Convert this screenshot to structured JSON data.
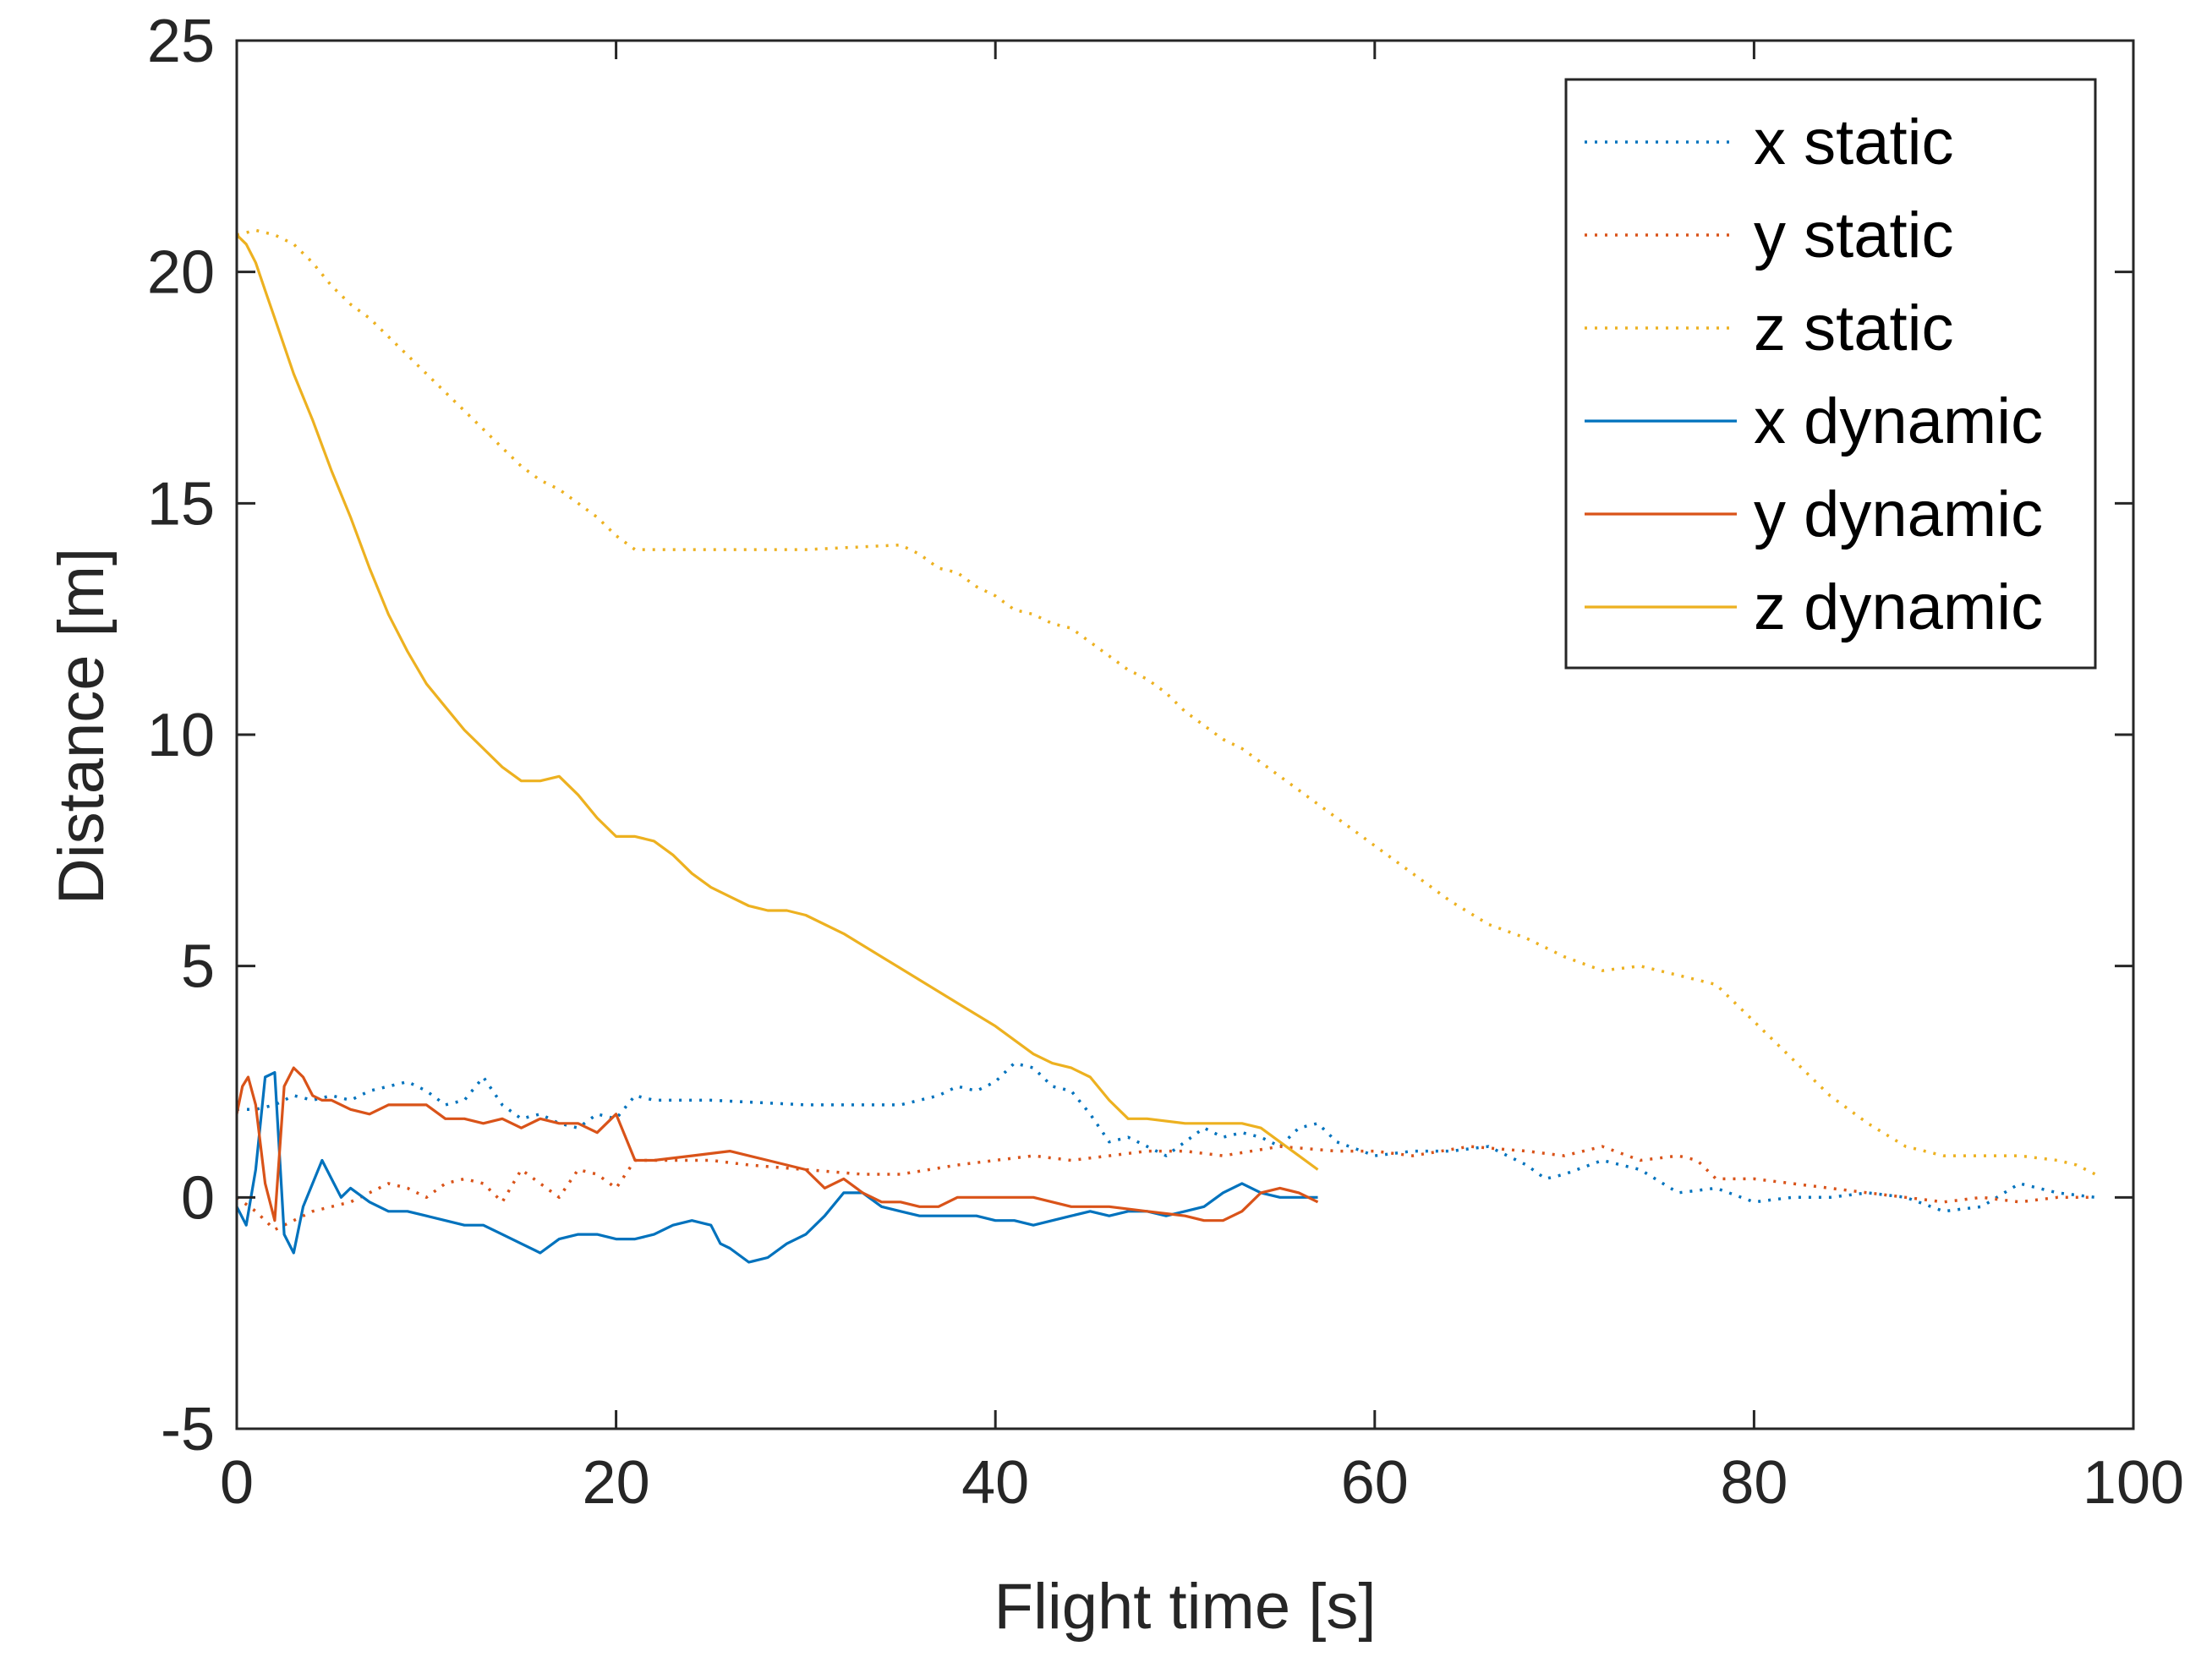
{
  "chart_data": {
    "type": "line",
    "title": "",
    "xlabel": "Flight time [s]",
    "ylabel": "Distance [m]",
    "xlim": [
      0,
      100
    ],
    "ylim": [
      -5,
      25
    ],
    "xticks": [
      0,
      20,
      40,
      60,
      80,
      100
    ],
    "yticks": [
      -5,
      0,
      5,
      10,
      15,
      20,
      25
    ],
    "xtick_labels": [
      "0",
      "20",
      "40",
      "60",
      "80",
      "100"
    ],
    "ytick_labels": [
      "-5",
      "0",
      "5",
      "10",
      "15",
      "20",
      "25"
    ],
    "grid": false,
    "legend_position": "top-right",
    "series": [
      {
        "name": "x static",
        "color": "#0072BD",
        "style": "dotted",
        "x": [
          0,
          1,
          2,
          3,
          4,
          5,
          6,
          7,
          8,
          9,
          10,
          11,
          12,
          13,
          14,
          15,
          16,
          17,
          18,
          19,
          20,
          21,
          22,
          25,
          30,
          35,
          37,
          38,
          39,
          40,
          41,
          42,
          43,
          44,
          45,
          46,
          47,
          48,
          49,
          50,
          51,
          52,
          53,
          54,
          55,
          56,
          57,
          58,
          60,
          62,
          64,
          66,
          68,
          69,
          70,
          72,
          74,
          76,
          78,
          80,
          82,
          84,
          86,
          88,
          90,
          92,
          94,
          96,
          98
        ],
        "y": [
          1.9,
          1.9,
          2.0,
          2.2,
          2.1,
          2.2,
          2.1,
          2.3,
          2.4,
          2.5,
          2.3,
          2.0,
          2.1,
          2.6,
          2.0,
          1.7,
          1.8,
          1.6,
          1.5,
          1.8,
          1.7,
          2.2,
          2.1,
          2.1,
          2.0,
          2.0,
          2.2,
          2.4,
          2.3,
          2.5,
          2.9,
          2.8,
          2.4,
          2.3,
          1.8,
          1.2,
          1.3,
          1.1,
          0.9,
          1.2,
          1.5,
          1.3,
          1.4,
          1.3,
          1.1,
          1.5,
          1.6,
          1.2,
          0.9,
          1.0,
          1.0,
          1.1,
          0.7,
          0.4,
          0.5,
          0.8,
          0.6,
          0.1,
          0.2,
          -0.1,
          0.0,
          0.0,
          0.1,
          0.0,
          -0.3,
          -0.2,
          0.3,
          0.1,
          0.0
        ]
      },
      {
        "name": "y static",
        "color": "#D95319",
        "style": "dotted",
        "x": [
          0,
          1,
          2,
          3,
          4,
          5,
          6,
          8,
          9,
          10,
          11,
          12,
          13,
          14,
          15,
          16,
          17,
          18,
          19,
          20,
          21,
          23,
          25,
          27,
          30,
          33,
          35,
          38,
          40,
          42,
          44,
          46,
          48,
          50,
          52,
          55,
          58,
          60,
          62,
          65,
          68,
          70,
          72,
          74,
          76,
          77,
          78,
          80,
          82,
          84,
          86,
          88,
          90,
          92,
          94,
          96,
          98
        ],
        "y": [
          0.0,
          -0.3,
          -0.7,
          -0.5,
          -0.3,
          -0.2,
          -0.1,
          0.3,
          0.2,
          0.0,
          0.3,
          0.4,
          0.3,
          -0.1,
          0.6,
          0.3,
          0.0,
          0.6,
          0.5,
          0.2,
          0.8,
          0.8,
          0.8,
          0.7,
          0.6,
          0.5,
          0.5,
          0.7,
          0.8,
          0.9,
          0.8,
          0.9,
          1.0,
          1.0,
          0.9,
          1.1,
          1.0,
          1.0,
          0.9,
          1.1,
          1.0,
          0.9,
          1.1,
          0.8,
          0.9,
          0.8,
          0.4,
          0.4,
          0.3,
          0.2,
          0.1,
          0.0,
          -0.1,
          0.0,
          -0.1,
          0.0,
          0.0
        ]
      },
      {
        "name": "z static",
        "color": "#EDB120",
        "style": "dotted",
        "x": [
          0,
          1,
          2,
          3,
          4,
          5,
          6,
          7,
          8,
          9,
          10,
          11,
          12,
          13,
          14,
          15,
          16,
          17,
          18,
          19,
          20,
          21,
          22,
          25,
          30,
          35,
          36,
          37,
          38,
          39,
          40,
          41,
          42,
          43,
          44,
          45,
          46,
          47,
          48,
          49,
          50,
          51,
          52,
          53,
          54,
          55,
          56,
          57,
          58,
          59,
          60,
          61,
          62,
          64,
          66,
          68,
          70,
          72,
          74,
          76,
          78,
          80,
          82,
          84,
          86,
          88,
          89,
          90,
          92,
          94,
          96,
          97,
          98
        ],
        "y": [
          20.8,
          20.9,
          20.8,
          20.6,
          20.2,
          19.7,
          19.3,
          19.0,
          18.6,
          18.2,
          17.8,
          17.4,
          17.0,
          16.6,
          16.2,
          15.8,
          15.5,
          15.3,
          15.0,
          14.7,
          14.3,
          14.0,
          14.0,
          14.0,
          14.0,
          14.1,
          13.9,
          13.6,
          13.5,
          13.2,
          13.0,
          12.7,
          12.6,
          12.4,
          12.3,
          12.0,
          11.7,
          11.4,
          11.2,
          10.9,
          10.5,
          10.2,
          9.9,
          9.7,
          9.4,
          9.1,
          8.8,
          8.5,
          8.2,
          7.9,
          7.6,
          7.3,
          7.0,
          6.4,
          5.9,
          5.6,
          5.2,
          4.9,
          5.0,
          4.8,
          4.6,
          3.8,
          3.0,
          2.2,
          1.6,
          1.1,
          1.0,
          0.9,
          0.9,
          0.9,
          0.8,
          0.7,
          0.5
        ]
      },
      {
        "name": "x dynamic",
        "color": "#0072BD",
        "style": "solid",
        "x": [
          0,
          0.5,
          1,
          1.5,
          2,
          2.5,
          3,
          3.5,
          4,
          4.5,
          5,
          5.5,
          6,
          7,
          8,
          9,
          10,
          11,
          12,
          13,
          14,
          15,
          16,
          17,
          18,
          19,
          20,
          21,
          22,
          23,
          24,
          25,
          25.5,
          26,
          27,
          28,
          29,
          30,
          31,
          32,
          33,
          34,
          35,
          36,
          37,
          38,
          39,
          40,
          41,
          42,
          43,
          44,
          45,
          46,
          47,
          48,
          49,
          50,
          51,
          52,
          53,
          54,
          55,
          56,
          57
        ],
        "y": [
          -0.2,
          -0.6,
          0.6,
          2.6,
          2.7,
          -0.8,
          -1.2,
          -0.2,
          0.3,
          0.8,
          0.4,
          0.0,
          0.2,
          -0.1,
          -0.3,
          -0.3,
          -0.4,
          -0.5,
          -0.6,
          -0.6,
          -0.8,
          -1.0,
          -1.2,
          -0.9,
          -0.8,
          -0.8,
          -0.9,
          -0.9,
          -0.8,
          -0.6,
          -0.5,
          -0.6,
          -1.0,
          -1.1,
          -1.4,
          -1.3,
          -1.0,
          -0.8,
          -0.4,
          0.1,
          0.1,
          -0.2,
          -0.3,
          -0.4,
          -0.4,
          -0.4,
          -0.4,
          -0.5,
          -0.5,
          -0.6,
          -0.5,
          -0.4,
          -0.3,
          -0.4,
          -0.3,
          -0.3,
          -0.4,
          -0.3,
          -0.2,
          0.1,
          0.3,
          0.1,
          0.0,
          0.0,
          0.0
        ]
      },
      {
        "name": "y dynamic",
        "color": "#D95319",
        "style": "solid",
        "x": [
          0,
          0.3,
          0.6,
          1,
          1.5,
          2,
          2.5,
          3,
          3.5,
          4,
          4.5,
          5,
          6,
          7,
          8,
          9,
          10,
          11,
          12,
          13,
          14,
          15,
          16,
          17,
          18,
          19,
          20,
          21,
          22,
          24,
          26,
          28,
          30,
          31,
          32,
          33,
          34,
          35,
          36,
          37,
          38,
          40,
          42,
          44,
          46,
          48,
          50,
          51,
          52,
          53,
          54,
          55,
          56,
          57
        ],
        "y": [
          1.8,
          2.4,
          2.6,
          2.0,
          0.3,
          -0.5,
          2.4,
          2.8,
          2.6,
          2.2,
          2.1,
          2.1,
          1.9,
          1.8,
          2.0,
          2.0,
          2.0,
          1.7,
          1.7,
          1.6,
          1.7,
          1.5,
          1.7,
          1.6,
          1.6,
          1.4,
          1.8,
          0.8,
          0.8,
          0.9,
          1.0,
          0.8,
          0.6,
          0.2,
          0.4,
          0.1,
          -0.1,
          -0.1,
          -0.2,
          -0.2,
          0.0,
          0.0,
          0.0,
          -0.2,
          -0.2,
          -0.3,
          -0.4,
          -0.5,
          -0.5,
          -0.3,
          0.1,
          0.2,
          0.1,
          -0.1
        ]
      },
      {
        "name": "z dynamic",
        "color": "#EDB120",
        "style": "solid",
        "x": [
          0,
          0.5,
          1,
          1.5,
          2,
          3,
          4,
          5,
          6,
          7,
          8,
          9,
          10,
          11,
          12,
          13,
          14,
          15,
          16,
          17,
          18,
          19,
          20,
          21,
          22,
          23,
          24,
          25,
          26,
          27,
          28,
          29,
          30,
          32,
          34,
          36,
          38,
          40,
          42,
          43,
          44,
          45,
          46,
          47,
          48,
          50,
          52,
          53,
          54,
          55,
          56,
          57
        ],
        "y": [
          20.8,
          20.6,
          20.2,
          19.6,
          19.0,
          17.8,
          16.8,
          15.7,
          14.7,
          13.6,
          12.6,
          11.8,
          11.1,
          10.6,
          10.1,
          9.7,
          9.3,
          9.0,
          9.0,
          9.1,
          8.7,
          8.2,
          7.8,
          7.8,
          7.7,
          7.4,
          7.0,
          6.7,
          6.5,
          6.3,
          6.2,
          6.2,
          6.1,
          5.7,
          5.2,
          4.7,
          4.2,
          3.7,
          3.1,
          2.9,
          2.8,
          2.6,
          2.1,
          1.7,
          1.7,
          1.6,
          1.6,
          1.6,
          1.5,
          1.2,
          0.9,
          0.6
        ]
      }
    ]
  }
}
